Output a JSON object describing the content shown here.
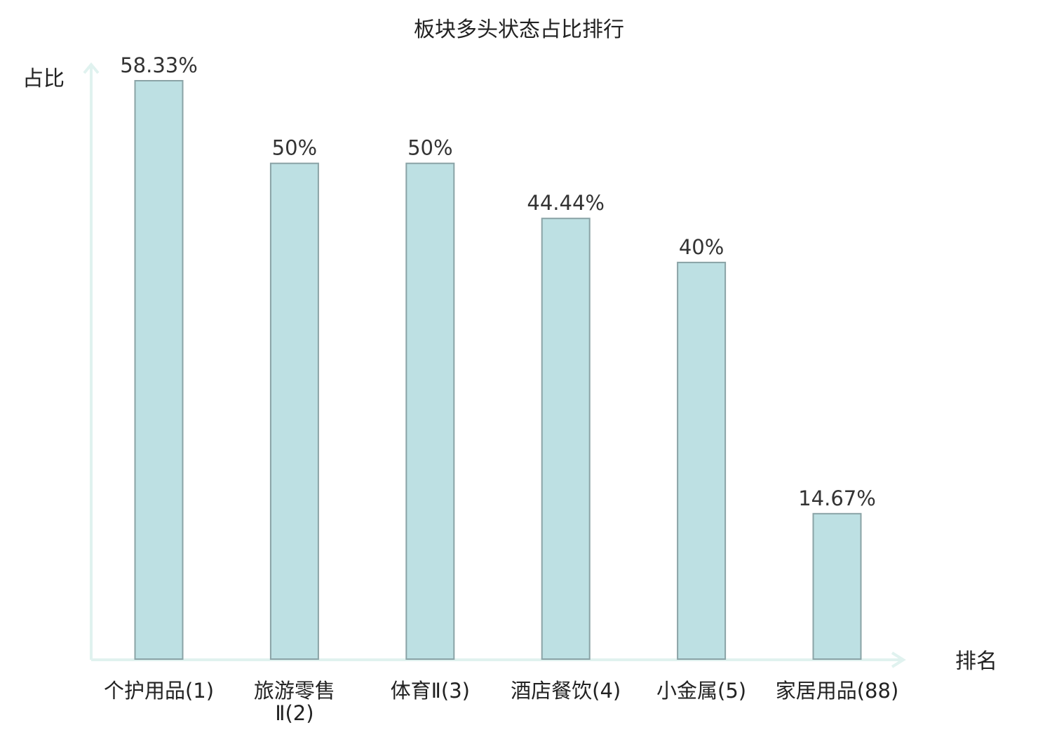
{
  "chart_data": {
    "type": "bar",
    "title": "板块多头状态占比排行",
    "ylabel": "占比",
    "xlabel": "排名",
    "ylim": [
      0,
      60
    ],
    "grid": false,
    "categories": [
      "个护用品(1)",
      "旅游零售Ⅱ(2)",
      "体育Ⅱ(3)",
      "酒店餐饮(4)",
      "小金属(5)",
      "家居用品(88)"
    ],
    "category_lines": [
      [
        "个护用品(1)"
      ],
      [
        "旅游零售",
        "Ⅱ(2)"
      ],
      [
        "体育Ⅱ(3)"
      ],
      [
        "酒店餐饮(4)"
      ],
      [
        "小金属(5)"
      ],
      [
        "家居用品(88)"
      ]
    ],
    "values": [
      58.33,
      50,
      50,
      44.44,
      40,
      14.67
    ],
    "value_labels": [
      "58.33%",
      "50%",
      "50%",
      "44.44%",
      "40%",
      "14.67%"
    ],
    "highlight_category_index": 5
  },
  "colors": {
    "bar_fill": "#bde0e3",
    "bar_stroke": "#8aa3a6",
    "axis": "#e0f2ef",
    "text": "#222222",
    "highlight_text": "#dd1111"
  }
}
